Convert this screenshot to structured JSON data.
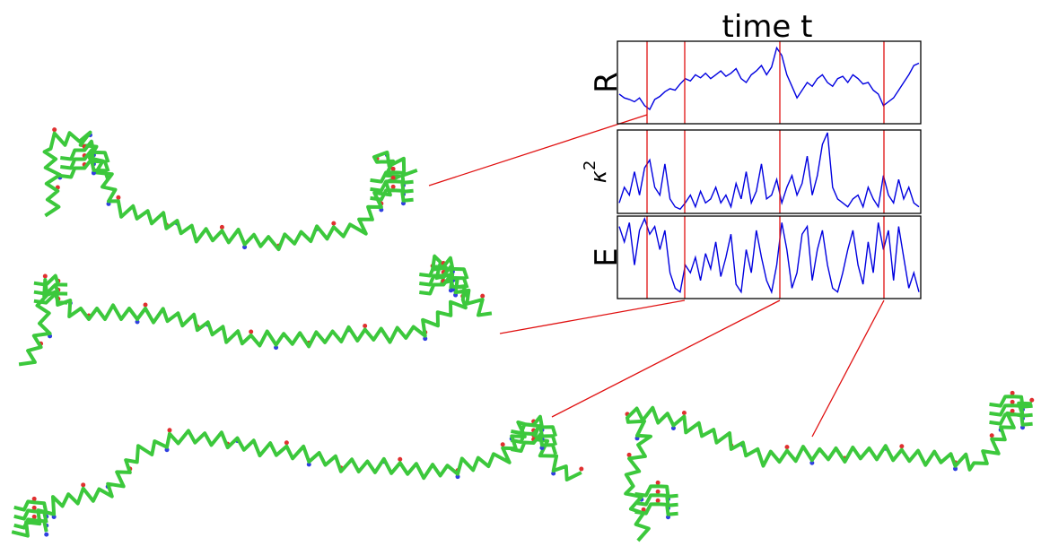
{
  "figure": {
    "title": "time t",
    "panels": [
      {
        "label": "R",
        "values": [
          0.35,
          0.3,
          0.28,
          0.25,
          0.3,
          0.2,
          0.15,
          0.28,
          0.32,
          0.38,
          0.42,
          0.4,
          0.48,
          0.55,
          0.52,
          0.6,
          0.56,
          0.62,
          0.55,
          0.6,
          0.65,
          0.58,
          0.62,
          0.68,
          0.55,
          0.5,
          0.6,
          0.65,
          0.72,
          0.6,
          0.7,
          0.95,
          0.85,
          0.6,
          0.45,
          0.3,
          0.4,
          0.5,
          0.45,
          0.55,
          0.6,
          0.5,
          0.45,
          0.55,
          0.58,
          0.5,
          0.6,
          0.55,
          0.48,
          0.5,
          0.4,
          0.35,
          0.2,
          0.25,
          0.3,
          0.4,
          0.5,
          0.6,
          0.72,
          0.75
        ]
      },
      {
        "label": "κ",
        "sup": "2",
        "values": [
          0.1,
          0.3,
          0.2,
          0.5,
          0.2,
          0.55,
          0.65,
          0.3,
          0.2,
          0.6,
          0.15,
          0.05,
          0.02,
          0.1,
          0.2,
          0.05,
          0.25,
          0.1,
          0.15,
          0.3,
          0.1,
          0.2,
          0.05,
          0.35,
          0.15,
          0.5,
          0.1,
          0.25,
          0.6,
          0.15,
          0.2,
          0.4,
          0.1,
          0.3,
          0.45,
          0.2,
          0.35,
          0.7,
          0.2,
          0.45,
          0.85,
          1.0,
          0.3,
          0.15,
          0.1,
          0.05,
          0.15,
          0.2,
          0.05,
          0.3,
          0.15,
          0.05,
          0.45,
          0.2,
          0.1,
          0.4,
          0.15,
          0.3,
          0.1,
          0.05
        ]
      },
      {
        "label": "E",
        "values": [
          0.9,
          0.7,
          0.95,
          0.4,
          0.85,
          1.0,
          0.8,
          0.9,
          0.6,
          0.85,
          0.3,
          0.1,
          0.05,
          0.4,
          0.3,
          0.5,
          0.2,
          0.55,
          0.35,
          0.7,
          0.25,
          0.5,
          0.8,
          0.15,
          0.05,
          0.6,
          0.3,
          0.85,
          0.5,
          0.2,
          0.05,
          0.4,
          0.95,
          0.6,
          0.1,
          0.3,
          0.8,
          0.9,
          0.2,
          0.6,
          0.85,
          0.4,
          0.1,
          0.05,
          0.3,
          0.6,
          0.85,
          0.4,
          0.15,
          0.7,
          0.3,
          0.95,
          0.6,
          0.85,
          0.2,
          0.9,
          0.5,
          0.1,
          0.3,
          0.05
        ]
      }
    ]
  }
}
